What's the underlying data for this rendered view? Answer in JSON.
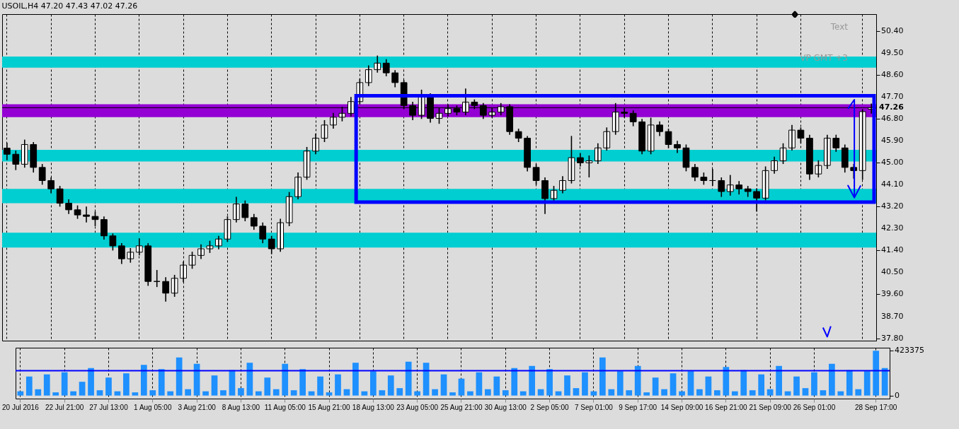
{
  "chart_data": [
    {
      "type": "candlestick",
      "title": "USOIL,H4  47.20 47.43 47.02 47.26",
      "color": "#000000",
      "categories": [
        null,
        null,
        null,
        null,
        null,
        null,
        null,
        null,
        null,
        null,
        null,
        null,
        null,
        null,
        null,
        null,
        null,
        null,
        null,
        null,
        null,
        null,
        null,
        null,
        null,
        null,
        null,
        null,
        null,
        null,
        null,
        null,
        null,
        null,
        null,
        null,
        null,
        null,
        null,
        null,
        null,
        null,
        null,
        null,
        null,
        null,
        null,
        null,
        null,
        null,
        null,
        null,
        null,
        null,
        null,
        null,
        null,
        null,
        null,
        null,
        null,
        null,
        null,
        null,
        null,
        null,
        null,
        null,
        null,
        null,
        null,
        null,
        null,
        null,
        null,
        null,
        null,
        null,
        null,
        null,
        null,
        null,
        null,
        null,
        null,
        null,
        null,
        null,
        null,
        null,
        null,
        null,
        null,
        null,
        null,
        null,
        null,
        null,
        null
      ],
      "ohlc": [
        [
          45.6,
          45.82,
          45.1,
          45.35
        ],
        [
          45.35,
          45.5,
          44.7,
          44.94
        ],
        [
          44.94,
          45.95,
          44.8,
          45.75
        ],
        [
          45.75,
          45.85,
          44.6,
          44.81
        ],
        [
          44.81,
          44.95,
          44.1,
          44.27
        ],
        [
          44.27,
          44.4,
          43.75,
          43.93
        ],
        [
          43.93,
          44.05,
          43.2,
          43.34
        ],
        [
          43.34,
          43.5,
          42.9,
          43.07
        ],
        [
          43.07,
          43.25,
          42.7,
          42.86
        ],
        [
          42.86,
          43.2,
          42.55,
          42.8
        ],
        [
          42.8,
          43.0,
          42.4,
          42.67
        ],
        [
          42.67,
          42.8,
          41.85,
          42.0
        ],
        [
          42.0,
          42.1,
          41.4,
          41.59
        ],
        [
          41.59,
          41.7,
          40.85,
          41.06
        ],
        [
          41.06,
          41.5,
          40.9,
          41.33
        ],
        [
          41.33,
          41.9,
          41.2,
          41.59
        ],
        [
          41.59,
          41.7,
          39.95,
          40.13
        ],
        [
          40.13,
          40.6,
          39.9,
          40.13
        ],
        [
          40.13,
          40.3,
          39.3,
          39.65
        ],
        [
          39.65,
          40.4,
          39.5,
          40.26
        ],
        [
          40.26,
          40.95,
          40.1,
          40.8
        ],
        [
          40.8,
          41.35,
          40.65,
          41.2
        ],
        [
          41.2,
          41.65,
          41.05,
          41.47
        ],
        [
          41.47,
          41.8,
          41.3,
          41.59
        ],
        [
          41.59,
          42.0,
          41.45,
          41.87
        ],
        [
          41.87,
          42.8,
          41.75,
          42.67
        ],
        [
          42.67,
          43.6,
          42.55,
          43.31
        ],
        [
          43.31,
          43.45,
          42.6,
          42.75
        ],
        [
          42.75,
          42.9,
          42.25,
          42.4
        ],
        [
          42.4,
          42.55,
          41.7,
          41.87
        ],
        [
          41.87,
          42.0,
          41.25,
          41.47
        ],
        [
          41.47,
          42.7,
          41.35,
          42.54
        ],
        [
          42.54,
          43.8,
          42.4,
          43.61
        ],
        [
          43.61,
          44.6,
          43.5,
          44.41
        ],
        [
          44.41,
          45.65,
          44.3,
          45.48
        ],
        [
          45.48,
          46.2,
          45.35,
          46.01
        ],
        [
          46.01,
          46.75,
          45.85,
          46.55
        ],
        [
          46.55,
          47.05,
          46.4,
          46.87
        ],
        [
          46.87,
          47.3,
          46.7,
          47.03
        ],
        [
          47.03,
          47.7,
          46.9,
          47.51
        ],
        [
          47.51,
          48.45,
          47.4,
          48.29
        ],
        [
          48.29,
          49.0,
          48.15,
          48.82
        ],
        [
          48.82,
          49.4,
          48.7,
          49.09
        ],
        [
          49.09,
          49.25,
          48.55,
          48.69
        ],
        [
          48.69,
          48.8,
          48.1,
          48.29
        ],
        [
          48.29,
          48.4,
          47.2,
          47.35
        ],
        [
          47.35,
          47.5,
          46.75,
          46.95
        ],
        [
          46.95,
          48.0,
          46.8,
          47.75
        ],
        [
          47.75,
          47.85,
          46.65,
          46.82
        ],
        [
          46.82,
          47.25,
          46.6,
          47.03
        ],
        [
          47.03,
          47.4,
          46.9,
          47.22
        ],
        [
          47.22,
          47.35,
          46.95,
          47.08
        ],
        [
          47.08,
          48.05,
          46.95,
          47.49
        ],
        [
          47.49,
          47.6,
          47.2,
          47.35
        ],
        [
          47.35,
          47.45,
          46.8,
          46.95
        ],
        [
          46.95,
          47.25,
          46.85,
          47.08
        ],
        [
          47.08,
          47.45,
          46.95,
          47.3
        ],
        [
          47.3,
          47.4,
          46.15,
          46.28
        ],
        [
          46.28,
          46.4,
          45.85,
          46.01
        ],
        [
          46.01,
          46.1,
          44.65,
          44.81
        ],
        [
          44.81,
          44.95,
          44.1,
          44.27
        ],
        [
          44.27,
          44.4,
          42.9,
          43.53
        ],
        [
          43.53,
          44.05,
          43.4,
          43.87
        ],
        [
          43.87,
          44.45,
          43.75,
          44.27
        ],
        [
          44.27,
          46.1,
          44.15,
          45.21
        ],
        [
          45.21,
          45.4,
          44.85,
          45.0
        ],
        [
          45.0,
          45.3,
          44.4,
          45.08
        ],
        [
          45.08,
          45.8,
          44.95,
          45.61
        ],
        [
          45.61,
          46.45,
          45.5,
          46.28
        ],
        [
          46.28,
          47.45,
          46.15,
          47.08
        ],
        [
          47.08,
          47.25,
          46.85,
          47.03
        ],
        [
          47.03,
          47.15,
          46.5,
          46.68
        ],
        [
          46.68,
          46.8,
          45.35,
          45.48
        ],
        [
          45.48,
          46.85,
          45.35,
          46.55
        ],
        [
          46.55,
          46.7,
          46.1,
          46.28
        ],
        [
          46.28,
          46.4,
          45.6,
          45.75
        ],
        [
          45.75,
          45.9,
          45.4,
          45.61
        ],
        [
          45.61,
          45.75,
          44.65,
          44.81
        ],
        [
          44.81,
          44.95,
          44.25,
          44.41
        ],
        [
          44.41,
          44.6,
          44.1,
          44.27
        ],
        [
          44.27,
          44.75,
          44.05,
          44.27
        ],
        [
          44.27,
          44.4,
          43.6,
          43.82
        ],
        [
          43.82,
          44.5,
          43.65,
          44.09
        ],
        [
          44.09,
          44.25,
          43.7,
          43.93
        ],
        [
          43.93,
          44.05,
          43.6,
          43.82
        ],
        [
          43.82,
          43.95,
          43.0,
          43.55
        ],
        [
          43.55,
          44.85,
          43.45,
          44.68
        ],
        [
          44.68,
          45.25,
          44.55,
          45.08
        ],
        [
          45.08,
          45.8,
          44.95,
          45.61
        ],
        [
          45.61,
          46.55,
          45.5,
          46.34
        ],
        [
          46.34,
          46.45,
          45.8,
          46.01
        ],
        [
          46.01,
          46.15,
          44.3,
          44.54
        ],
        [
          44.54,
          45.1,
          44.4,
          44.89
        ],
        [
          44.89,
          46.15,
          44.75,
          46.01
        ],
        [
          46.01,
          46.15,
          45.45,
          45.61
        ],
        [
          45.61,
          45.75,
          44.6,
          44.81
        ],
        [
          44.81,
          44.95,
          44.35,
          44.68
        ],
        [
          44.68,
          47.2,
          44.3,
          47.1
        ],
        [
          47.2,
          47.43,
          47.02,
          47.26
        ]
      ],
      "ylim": [
        37.7,
        51.1
      ],
      "yticks": [
        {
          "value": 37.8,
          "label": "37.80"
        },
        {
          "value": 38.7,
          "label": "38.70"
        },
        {
          "value": 39.6,
          "label": "39.60"
        },
        {
          "value": 40.5,
          "label": "40.50"
        },
        {
          "value": 41.4,
          "label": "41.40"
        },
        {
          "value": 42.3,
          "label": "42.30"
        },
        {
          "value": 43.2,
          "label": "43.20"
        },
        {
          "value": 44.1,
          "label": "44.10"
        },
        {
          "value": 45,
          "label": "45.00"
        },
        {
          "value": 45.9,
          "label": "45.90"
        },
        {
          "value": 46.8,
          "label": "46.80"
        },
        {
          "value": 47.7,
          "label": "47.70"
        },
        {
          "value": 48.6,
          "label": "48.60"
        },
        {
          "value": 49.5,
          "label": "49.50"
        },
        {
          "value": 50.4,
          "label": "50.40"
        }
      ],
      "bands": [
        {
          "axis": "y",
          "from": 48.9,
          "to": 49.36,
          "color": "#00ced1"
        },
        {
          "axis": "y",
          "from": 46.87,
          "to": 47.4,
          "color": "#9400d3"
        },
        {
          "axis": "y",
          "from": 45.05,
          "to": 45.53,
          "color": "#00ced1"
        },
        {
          "axis": "y",
          "from": 43.34,
          "to": 43.93,
          "color": "#00ced1"
        },
        {
          "axis": "y",
          "from": 41.52,
          "to": 42.13,
          "color": "#00ced1"
        }
      ],
      "ref_lines": [
        {
          "axis": "y",
          "value": 47.26,
          "label": "47.26",
          "color": "#000000"
        }
      ],
      "annotations": [
        "Text",
        "VP GMT +3"
      ],
      "grid": "x",
      "tick_labels": "y"
    },
    {
      "type": "bar",
      "color": "#1e90ff",
      "categories": [
        "20 Jul 2016",
        null,
        null,
        null,
        null,
        "22 Jul 21:00",
        null,
        null,
        null,
        null,
        "27 Jul 13:00",
        null,
        null,
        null,
        null,
        "1 Aug 05:00",
        null,
        null,
        null,
        null,
        "3 Aug 21:00",
        null,
        null,
        null,
        null,
        "8 Aug 13:00",
        null,
        null,
        null,
        null,
        "11 Aug 05:00",
        null,
        null,
        null,
        null,
        "15 Aug 21:00",
        null,
        null,
        null,
        null,
        "18 Aug 13:00",
        null,
        null,
        null,
        null,
        "23 Aug 05:00",
        null,
        null,
        null,
        null,
        "25 Aug 21:00",
        null,
        null,
        null,
        null,
        "30 Aug 13:00",
        null,
        null,
        null,
        null,
        "2 Sep 05:00",
        null,
        null,
        null,
        null,
        "7 Sep 01:00",
        null,
        null,
        null,
        null,
        "9 Sep 17:00",
        null,
        null,
        null,
        null,
        "14 Sep 09:00",
        null,
        null,
        null,
        null,
        "16 Sep 21:00",
        null,
        null,
        null,
        null,
        "21 Sep 09:00",
        null,
        null,
        null,
        null,
        "26 Sep 01:00",
        null,
        null,
        null,
        null,
        null,
        null,
        "28 Sep 17:00",
        null
      ],
      "values": [
        40000,
        180000,
        60000,
        200000,
        30000,
        220000,
        40000,
        130000,
        260000,
        50000,
        170000,
        40000,
        210000,
        30000,
        290000,
        50000,
        250000,
        40000,
        360000,
        60000,
        300000,
        40000,
        190000,
        50000,
        240000,
        70000,
        310000,
        40000,
        170000,
        60000,
        300000,
        50000,
        250000,
        40000,
        180000,
        30000,
        200000,
        60000,
        310000,
        40000,
        230000,
        50000,
        190000,
        70000,
        320000,
        40000,
        310000,
        60000,
        200000,
        30000,
        160000,
        40000,
        220000,
        60000,
        180000,
        50000,
        260000,
        40000,
        280000,
        60000,
        250000,
        40000,
        190000,
        70000,
        220000,
        40000,
        360000,
        60000,
        230000,
        50000,
        280000,
        30000,
        170000,
        60000,
        210000,
        40000,
        230000,
        60000,
        180000,
        50000,
        270000,
        40000,
        240000,
        50000,
        200000,
        60000,
        280000,
        40000,
        180000,
        70000,
        220000,
        50000,
        300000,
        40000,
        240000,
        60000,
        230000,
        423375,
        260000
      ],
      "ylim": [
        -29000,
        452000
      ],
      "yticks": [
        0,
        423375
      ],
      "ref_lines": [
        {
          "axis": "y",
          "value": 235000,
          "color": "#0000ff"
        }
      ],
      "grid": "x"
    }
  ]
}
